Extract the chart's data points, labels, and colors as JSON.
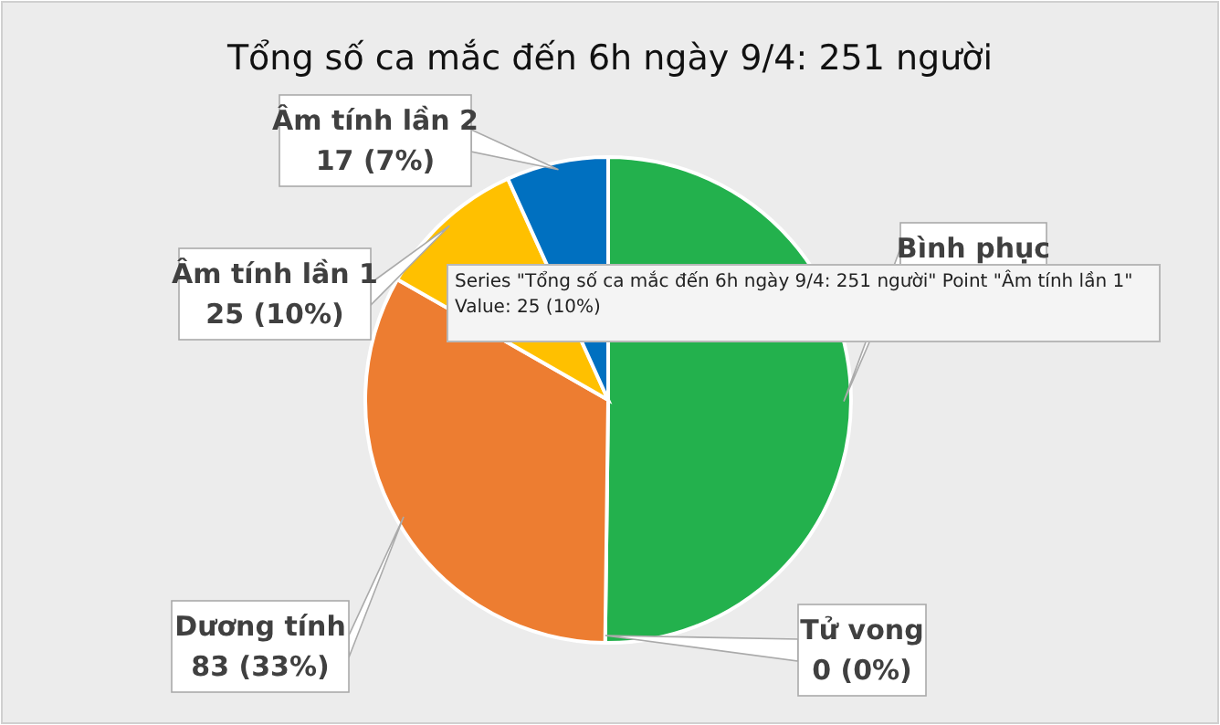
{
  "chart_data": {
    "type": "pie",
    "title": "Tổng số ca mắc đến 6h ngày 9/4: 251 người",
    "categories": [
      "Bình phục",
      "Tử vong",
      "Dương tính",
      "Âm tính lần 1",
      "Âm tính lần 2"
    ],
    "values": [
      126,
      0,
      83,
      25,
      17
    ],
    "colors": [
      "#23b14d",
      "#1f77b4",
      "#ed7d31",
      "#ffc000",
      "#0070c0"
    ],
    "value_labels": [
      null,
      "0 (0%)",
      "83 (33%)",
      "25 (10%)",
      "17 (7%)"
    ],
    "annotations": [
      "Series \"Tổng số ca mắc đến 6h ngày 9/4: 251 người\" Point \"Âm tính lần 1\"",
      "Value: 25 (10%)"
    ]
  }
}
